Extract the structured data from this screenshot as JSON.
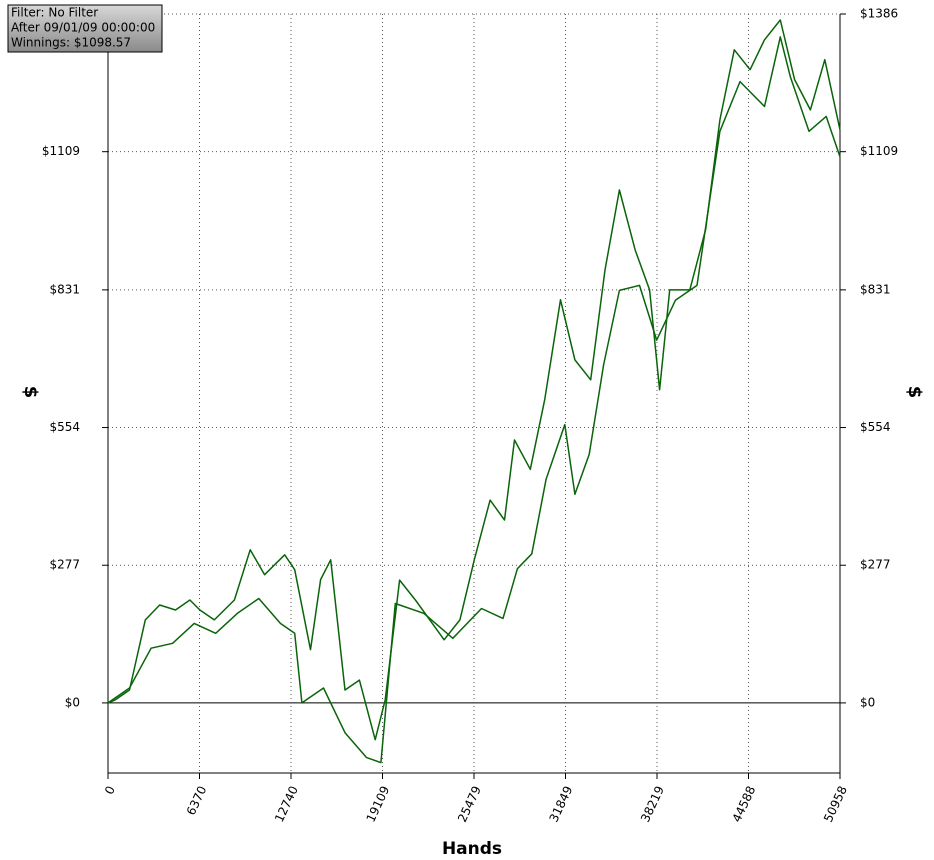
{
  "chart_data": {
    "type": "line",
    "annotations": [
      "Filter: No Filter",
      "After 09/01/09 00:00:00",
      "Winnings: $1098.57"
    ],
    "xlabel": "Hands",
    "ylabel": "$",
    "y2label": "$",
    "xlim": [
      0,
      50958
    ],
    "xticks": [
      0,
      6370,
      12740,
      19109,
      25479,
      31849,
      38219,
      44588,
      50958
    ],
    "ylim": [
      -141,
      1386
    ],
    "yticks": [
      {
        "value": 0,
        "label": "$0"
      },
      {
        "value": 277,
        "label": "$277"
      },
      {
        "value": 554,
        "label": "$554"
      },
      {
        "value": 831,
        "label": "$831"
      },
      {
        "value": 1109,
        "label": "$1109"
      },
      {
        "value": 1386,
        "label": "$1386"
      }
    ],
    "y2lim": [
      -141,
      1386
    ],
    "y2ticks": [
      {
        "value": 0,
        "label": "$0"
      },
      {
        "value": 277,
        "label": "$277"
      },
      {
        "value": 554,
        "label": "$554"
      },
      {
        "value": 831,
        "label": "$831"
      },
      {
        "value": 1109,
        "label": "$1109"
      },
      {
        "value": 1386,
        "label": "$1386"
      }
    ],
    "grid": true,
    "series": [
      {
        "color": "#0a640a",
        "x": [
          0,
          500,
          1500,
          2600,
          3600,
          4700,
          5700,
          6400,
          7400,
          8800,
          9900,
          10900,
          12300,
          13000,
          14100,
          14800,
          15500,
          16500,
          17500,
          18600,
          19300,
          20300,
          21400,
          22400,
          23400,
          24500,
          25500,
          26600,
          27600,
          28300,
          29400,
          30400,
          31500,
          32500,
          33600,
          34600,
          35600,
          36700,
          37700,
          38400,
          39100,
          40500,
          41600,
          42600,
          43600,
          44700,
          45700,
          46800,
          47800,
          48900,
          49900,
          50958
        ],
        "values": [
          0,
          6,
          26,
          167,
          197,
          187,
          207,
          187,
          167,
          207,
          308,
          258,
          298,
          268,
          107,
          248,
          288,
          26,
          46,
          -74,
          6,
          247,
          207,
          167,
          127,
          167,
          288,
          408,
          368,
          529,
          470,
          610,
          811,
          690,
          650,
          871,
          1032,
          911,
          831,
          630,
          831,
          831,
          952,
          1173,
          1314,
          1274,
          1334,
          1374,
          1254,
          1193,
          1294,
          1153
        ]
      },
      {
        "color": "#0a640a",
        "x": [
          0,
          1500,
          3000,
          4500,
          6000,
          7500,
          9000,
          10500,
          12000,
          13000,
          13500,
          15000,
          16500,
          18000,
          19000,
          20000,
          22000,
          24000,
          26000,
          27500,
          28500,
          29500,
          30500,
          31800,
          32500,
          33500,
          34500,
          35600,
          37000,
          38200,
          39500,
          41000,
          42600,
          44000,
          45700,
          46800,
          47500,
          48800,
          50000,
          50958
        ],
        "values": [
          0,
          30,
          110,
          120,
          160,
          140,
          180,
          210,
          160,
          140,
          0,
          30,
          -60,
          -110,
          -120,
          200,
          180,
          130,
          190,
          170,
          270,
          300,
          450,
          560,
          420,
          500,
          680,
          830,
          840,
          730,
          810,
          840,
          1150,
          1250,
          1200,
          1340,
          1260,
          1150,
          1180,
          1098.57
        ]
      }
    ]
  }
}
